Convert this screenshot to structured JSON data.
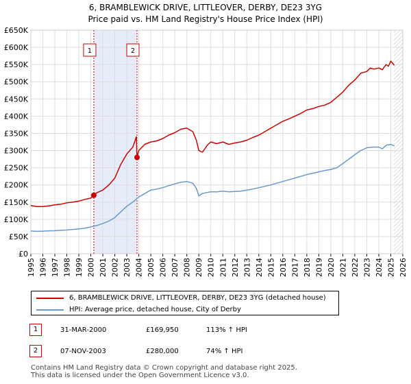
{
  "title_line1": "6, BRAMBLEWICK DRIVE, LITTLEOVER, DERBY, DE23 3YG",
  "title_line2": "Price paid vs. HM Land Registry's House Price Index (HPI)",
  "chart_data": {
    "type": "line",
    "title": "6, BRAMBLEWICK DRIVE, LITTLEOVER, DERBY, DE23 3YG — Price paid vs. HM Land Registry's House Price Index (HPI)",
    "xlim": [
      1995,
      2026
    ],
    "ylim": [
      0,
      650000
    ],
    "y_ticks": [
      0,
      50000,
      100000,
      150000,
      200000,
      250000,
      300000,
      350000,
      400000,
      450000,
      500000,
      550000,
      600000,
      650000
    ],
    "y_tick_labels": [
      "£0",
      "£50K",
      "£100K",
      "£150K",
      "£200K",
      "£250K",
      "£300K",
      "£350K",
      "£400K",
      "£450K",
      "£500K",
      "£550K",
      "£600K",
      "£650K"
    ],
    "x_ticks": [
      1995,
      1996,
      1997,
      1998,
      1999,
      2000,
      2001,
      2002,
      2003,
      2004,
      2005,
      2006,
      2007,
      2008,
      2009,
      2010,
      2011,
      2012,
      2013,
      2014,
      2015,
      2016,
      2017,
      2018,
      2019,
      2020,
      2021,
      2022,
      2023,
      2024,
      2025,
      2026
    ],
    "grid": true,
    "colors": {
      "property": "#cc0000",
      "hpi": "#6699cc",
      "shade": "#e6ecfa",
      "grid": "#dddddd"
    },
    "series": [
      {
        "name": "6, BRAMBLEWICK DRIVE, LITTLEOVER, DERBY, DE23 3YG (detached house)",
        "x": [
          1995.0,
          1995.5,
          1996.0,
          1996.5,
          1997.0,
          1997.5,
          1998.0,
          1998.5,
          1999.0,
          1999.5,
          2000.0,
          2000.25,
          2000.5,
          2001.0,
          2001.5,
          2002.0,
          2002.5,
          2003.0,
          2003.5,
          2003.8,
          2003.85,
          2004.0,
          2004.5,
          2005.0,
          2005.5,
          2006.0,
          2006.5,
          2007.0,
          2007.5,
          2008.0,
          2008.5,
          2008.8,
          2009.0,
          2009.3,
          2009.7,
          2010.0,
          2010.5,
          2011.0,
          2011.5,
          2012.0,
          2012.5,
          2013.0,
          2013.5,
          2014.0,
          2014.5,
          2015.0,
          2015.5,
          2016.0,
          2016.5,
          2017.0,
          2017.5,
          2018.0,
          2018.5,
          2019.0,
          2019.5,
          2020.0,
          2020.5,
          2021.0,
          2021.5,
          2022.0,
          2022.5,
          2023.0,
          2023.3,
          2023.6,
          2024.0,
          2024.3,
          2024.6,
          2024.8,
          2025.0,
          2025.3
        ],
        "values": [
          140000,
          137000,
          137000,
          139000,
          142000,
          144000,
          148000,
          150000,
          153000,
          158000,
          162000,
          170000,
          177000,
          185000,
          200000,
          220000,
          260000,
          290000,
          310000,
          340000,
          280000,
          300000,
          318000,
          325000,
          328000,
          335000,
          345000,
          352000,
          362000,
          365000,
          355000,
          330000,
          300000,
          295000,
          315000,
          325000,
          320000,
          325000,
          318000,
          322000,
          325000,
          330000,
          338000,
          345000,
          355000,
          365000,
          375000,
          385000,
          392000,
          400000,
          408000,
          418000,
          422000,
          428000,
          432000,
          440000,
          455000,
          470000,
          490000,
          505000,
          525000,
          530000,
          540000,
          537000,
          540000,
          535000,
          550000,
          545000,
          560000,
          548000
        ]
      },
      {
        "name": "HPI: Average price, detached house, City of Derby",
        "x": [
          1995.0,
          1995.5,
          1996.0,
          1996.5,
          1997.0,
          1997.5,
          1998.0,
          1998.5,
          1999.0,
          1999.5,
          2000.0,
          2000.5,
          2001.0,
          2001.5,
          2002.0,
          2002.5,
          2003.0,
          2003.5,
          2004.0,
          2004.5,
          2005.0,
          2005.5,
          2006.0,
          2006.5,
          2007.0,
          2007.5,
          2008.0,
          2008.5,
          2008.8,
          2009.0,
          2009.3,
          2009.7,
          2010.0,
          2010.5,
          2011.0,
          2011.5,
          2012.0,
          2012.5,
          2013.0,
          2013.5,
          2014.0,
          2014.5,
          2015.0,
          2015.5,
          2016.0,
          2016.5,
          2017.0,
          2017.5,
          2018.0,
          2018.5,
          2019.0,
          2019.5,
          2020.0,
          2020.5,
          2021.0,
          2021.5,
          2022.0,
          2022.5,
          2023.0,
          2023.5,
          2024.0,
          2024.3,
          2024.6,
          2025.0,
          2025.3
        ],
        "values": [
          66000,
          65000,
          65500,
          66500,
          67000,
          68000,
          69000,
          70500,
          72000,
          74000,
          78000,
          82000,
          88000,
          95000,
          105000,
          122000,
          138000,
          150000,
          165000,
          175000,
          185000,
          188000,
          192000,
          198000,
          203000,
          208000,
          210000,
          205000,
          190000,
          168000,
          175000,
          178000,
          180000,
          180000,
          182000,
          180000,
          181000,
          182000,
          185000,
          188000,
          192000,
          196000,
          200000,
          205000,
          210000,
          215000,
          220000,
          225000,
          230000,
          234000,
          238000,
          242000,
          245000,
          250000,
          262000,
          275000,
          288000,
          300000,
          308000,
          310000,
          310000,
          305000,
          315000,
          318000,
          313000
        ]
      }
    ],
    "annotations": [
      {
        "label": "1",
        "x": 2000.25,
        "value": 169950
      },
      {
        "label": "2",
        "x": 2003.85,
        "value": 280000
      }
    ]
  },
  "legend": {
    "property_label": "6, BRAMBLEWICK DRIVE, LITTLEOVER, DERBY, DE23 3YG (detached house)",
    "hpi_label": "HPI: Average price, detached house, City of Derby"
  },
  "transactions": [
    {
      "num": "1",
      "date": "31-MAR-2000",
      "price": "£169,950",
      "hpi": "113% ↑ HPI"
    },
    {
      "num": "2",
      "date": "07-NOV-2003",
      "price": "£280,000",
      "hpi": "74% ↑ HPI"
    }
  ],
  "footer": {
    "line1": "Contains HM Land Registry data © Crown copyright and database right 2025.",
    "line2": "This data is licensed under the Open Government Licence v3.0."
  }
}
